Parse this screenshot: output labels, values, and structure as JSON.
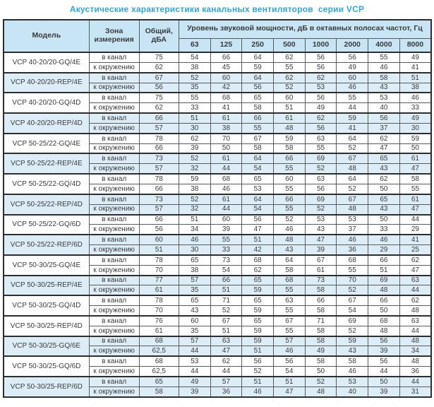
{
  "page": {
    "title": "Акустические характеристики канальных вентиляторов  серии VCP"
  },
  "colors": {
    "title": "#2aa9e0",
    "header_bg": "#c7e5f4",
    "band_bg": "#dcedf8"
  },
  "table": {
    "columns": {
      "model": "Модель",
      "zone": "Зона\nизмерения",
      "total": "Общий,\nдБА",
      "spl_header": "Уровень звуковой мощности, дБ в октавных полосах частот, Гц",
      "frequencies": [
        "63",
        "125",
        "250",
        "500",
        "1000",
        "2000",
        "4000",
        "8000"
      ]
    },
    "zone_row_labels": [
      "в канал",
      "к окружению"
    ],
    "groups": [
      {
        "model": "VCP 40-20/20-GQ/4E",
        "shaded": false,
        "rows": [
          {
            "zone": "в канал",
            "total": "75",
            "values": [
              54,
              66,
              64,
              62,
              56,
              56,
              55,
              49
            ]
          },
          {
            "zone": "к окружению",
            "total": "62",
            "values": [
              38,
              45,
              59,
              55,
              56,
              49,
              46,
              41
            ]
          }
        ]
      },
      {
        "model": "VCP 40-20/20-REP/4E",
        "shaded": true,
        "rows": [
          {
            "zone": "в канал",
            "total": "67",
            "values": [
              52,
              60,
              64,
              62,
              62,
              60,
              58,
              51
            ]
          },
          {
            "zone": "к окружению",
            "total": "56",
            "values": [
              35,
              42,
              56,
              52,
              53,
              46,
              43,
              38
            ]
          }
        ]
      },
      {
        "model": "VCP 40-20/20-GQ/4D",
        "shaded": false,
        "rows": [
          {
            "zone": "в канал",
            "total": "75",
            "values": [
              55,
              68,
              65,
              60,
              56,
              55,
              53,
              46
            ]
          },
          {
            "zone": "к окружению",
            "total": "62",
            "values": [
              33,
              41,
              58,
              51,
              49,
              44,
              40,
              33
            ]
          }
        ]
      },
      {
        "model": "VCP 40-20/20-REP/4D",
        "shaded": true,
        "rows": [
          {
            "zone": "в канал",
            "total": "66",
            "values": [
              51,
              61,
              66,
              61,
              62,
              59,
              56,
              49
            ]
          },
          {
            "zone": "к окружению",
            "total": "57",
            "values": [
              30,
              38,
              55,
              48,
              56,
              41,
              37,
              30
            ]
          }
        ]
      },
      {
        "model": "VCP 50-25/22-GQ/4E",
        "shaded": false,
        "rows": [
          {
            "zone": "в канал",
            "total": "78",
            "values": [
              62,
              70,
              67,
              59,
              63,
              64,
              62,
              59
            ]
          },
          {
            "zone": "к окружению",
            "total": "66",
            "values": [
              39,
              50,
              58,
              58,
              55,
              52,
              47,
              50
            ]
          }
        ]
      },
      {
        "model": "VCP 50-25/22-REP/4E",
        "shaded": true,
        "rows": [
          {
            "zone": "в канал",
            "total": "73",
            "values": [
              52,
              61,
              64,
              66,
              69,
              67,
              65,
              61
            ]
          },
          {
            "zone": "к окружению",
            "total": "57",
            "values": [
              32,
              44,
              54,
              55,
              52,
              48,
              43,
              47
            ]
          }
        ]
      },
      {
        "model": "VCP 50-25/22-GQ/4D",
        "shaded": false,
        "rows": [
          {
            "zone": "в канал",
            "total": "78",
            "values": [
              59,
              68,
              65,
              60,
              63,
              64,
              62,
              58
            ]
          },
          {
            "zone": "к окружению",
            "total": "66",
            "values": [
              38,
              46,
              53,
              55,
              56,
              52,
              50,
              55
            ]
          }
        ]
      },
      {
        "model": "VCP 50-25/22-REP/4D",
        "shaded": true,
        "rows": [
          {
            "zone": "в канал",
            "total": "73",
            "values": [
              52,
              61,
              64,
              66,
              69,
              67,
              65,
              61
            ]
          },
          {
            "zone": "к окружению",
            "total": "57",
            "values": [
              32,
              44,
              54,
              55,
              52,
              48,
              43,
              47
            ]
          }
        ]
      },
      {
        "model": "VCP 50-25/22-GQ/6D",
        "shaded": false,
        "rows": [
          {
            "zone": "в канал",
            "total": "66",
            "values": [
              51,
              60,
              56,
              52,
              53,
              53,
              50,
              44
            ]
          },
          {
            "zone": "к окружению",
            "total": "56",
            "values": [
              34,
              39,
              47,
              46,
              43,
              37,
              33,
              29
            ]
          }
        ]
      },
      {
        "model": "VCP 50-25/22-REP/6D",
        "shaded": true,
        "rows": [
          {
            "zone": "в канал",
            "total": "60",
            "values": [
              46,
              55,
              51,
              48,
              47,
              46,
              46,
              41
            ]
          },
          {
            "zone": "к окружению",
            "total": "51",
            "values": [
              30,
              33,
              42,
              43,
              39,
              36,
              29,
              25
            ]
          }
        ]
      },
      {
        "model": "VCP 50-30/25-GQ/4E",
        "shaded": false,
        "rows": [
          {
            "zone": "в канал",
            "total": "78",
            "values": [
              65,
              73,
              68,
              64,
              67,
              68,
              66,
              62
            ]
          },
          {
            "zone": "к окружению",
            "total": "70",
            "values": [
              38,
              54,
              62,
              58,
              61,
              55,
              51,
              47
            ]
          }
        ]
      },
      {
        "model": "VCP 50-30/25-REP/4E",
        "shaded": true,
        "rows": [
          {
            "zone": "в канал",
            "total": "77",
            "values": [
              57,
              66,
              65,
              68,
              73,
              70,
              69,
              63
            ]
          },
          {
            "zone": "к окружению",
            "total": "61",
            "values": [
              35,
              51,
              59,
              55,
              58,
              52,
              48,
              44
            ]
          }
        ]
      },
      {
        "model": "VCP 50-30/25-GQ/4D",
        "shaded": false,
        "rows": [
          {
            "zone": "в канал",
            "total": "78",
            "values": [
              65,
              71,
              65,
              63,
              66,
              67,
              66,
              62
            ]
          },
          {
            "zone": "к окружению",
            "total": "70",
            "values": [
              43,
              52,
              59,
              55,
              58,
              54,
              50,
              48
            ]
          }
        ]
      },
      {
        "model": "VCP 50-30/25-REP/4D",
        "shaded": false,
        "rows": [
          {
            "zone": "в канал",
            "total": "76",
            "values": [
              60,
              67,
              65,
              67,
              71,
              69,
              68,
              63
            ]
          },
          {
            "zone": "к окружению",
            "total": "61",
            "values": [
              35,
              51,
              59,
              55,
              58,
              52,
              48,
              44
            ]
          }
        ]
      },
      {
        "model": "VCP 50-30/25-GQ/6E",
        "shaded": true,
        "rows": [
          {
            "zone": "в канал",
            "total": "68",
            "values": [
              57,
              63,
              59,
              57,
              58,
              59,
              56,
              48
            ]
          },
          {
            "zone": "к окружению",
            "total": "62,5",
            "values": [
              44,
              47,
              51,
              46,
              49,
              43,
              39,
              34
            ]
          }
        ]
      },
      {
        "model": "VCP 50-30/25-GQ/6D",
        "shaded": false,
        "rows": [
          {
            "zone": "в канал",
            "total": "68",
            "values": [
              53,
              62,
              56,
              56,
              58,
              58,
              56,
              48
            ]
          },
          {
            "zone": "к окружению",
            "total": "62,5",
            "values": [
              44,
              44,
              52,
              54,
              50,
              46,
              44,
              36
            ]
          }
        ]
      },
      {
        "model": "VCP 50-30/25-REP/6D",
        "shaded": true,
        "rows": [
          {
            "zone": "в канал",
            "total": "65",
            "values": [
              49,
              57,
              51,
              51,
              52,
              53,
              50,
              44
            ]
          },
          {
            "zone": "к окружению",
            "total": "58",
            "values": [
              39,
              36,
              46,
              47,
              48,
              40,
              39,
              31
            ]
          }
        ]
      }
    ]
  }
}
